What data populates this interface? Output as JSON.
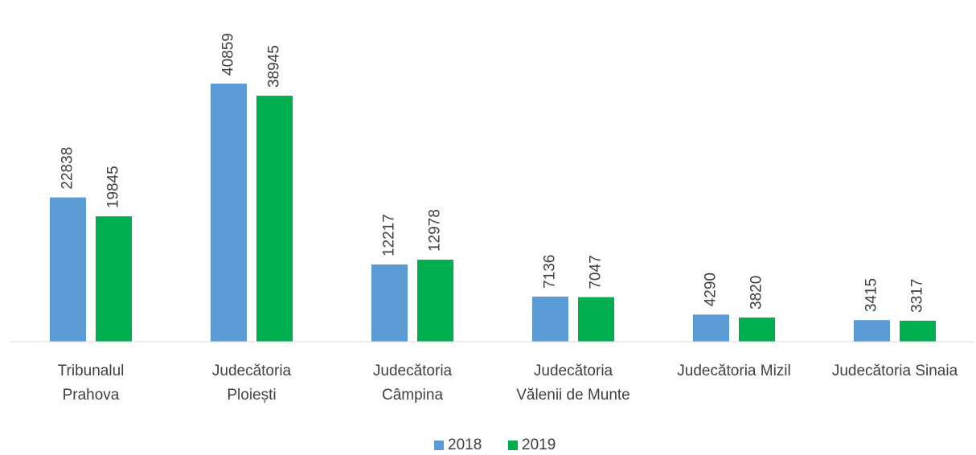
{
  "chart_data": {
    "type": "bar",
    "categories": [
      "Tribunalul\nPrahova",
      "Judecătoria\nPloiești",
      "Judecătoria\nCâmpina",
      "Judecătoria\nVălenii de Munte",
      "Judecătoria Mizil",
      "Judecătoria Sinaia"
    ],
    "series": [
      {
        "name": "2018",
        "color": "#5b9bd5",
        "values": [
          22838,
          40859,
          12217,
          7136,
          4290,
          3415
        ]
      },
      {
        "name": "2019",
        "color": "#00b050",
        "values": [
          19845,
          38945,
          12978,
          7047,
          3820,
          3317
        ]
      }
    ]
  }
}
